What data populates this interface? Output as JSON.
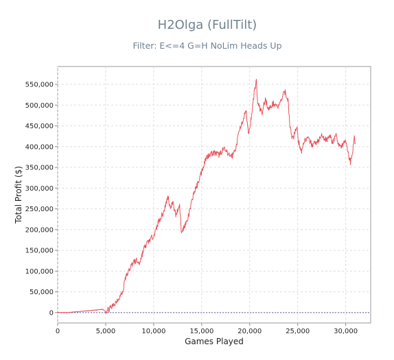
{
  "chart_data": {
    "type": "line",
    "title": "H2Olga (FullTilt)",
    "subtitle": "Filter: E<=4 G=H NoLim Heads Up",
    "xlabel": "Games Played",
    "ylabel": "Total Profit ($)",
    "xlim": [
      0,
      32600
    ],
    "ylim": [
      -25000,
      593000
    ],
    "x_ticks": [
      0,
      5000,
      10000,
      15000,
      20000,
      25000,
      30000
    ],
    "x_tick_labels": [
      "0",
      "5,000",
      "10,000",
      "15,000",
      "20,000",
      "25,000",
      "30,000"
    ],
    "y_ticks": [
      0,
      50000,
      100000,
      150000,
      200000,
      250000,
      300000,
      350000,
      400000,
      450000,
      500000,
      550000
    ],
    "y_tick_labels": [
      "0",
      "50,000",
      "100,000",
      "150,000",
      "200,000",
      "250,000",
      "300,000",
      "350,000",
      "400,000",
      "450,000",
      "500,000",
      "550,000"
    ],
    "grid": true,
    "line_color": "#e8525a",
    "zero_line_color": "#5a5aaa",
    "series": [
      {
        "x": [
          0,
          1000,
          2000,
          3000,
          4000,
          4700,
          5000,
          5600,
          6200,
          6800,
          7000,
          7400,
          7800,
          8200,
          8500,
          9000,
          9400,
          9800,
          10200,
          10500,
          11000,
          11500,
          11700,
          12000,
          12300,
          12700,
          12900,
          13200,
          13500,
          13800,
          14200,
          14500,
          15000,
          15400,
          15800,
          16300,
          16800,
          17300,
          17800,
          18200,
          18600,
          19000,
          19300,
          19600,
          19900,
          20200,
          20500,
          20700,
          20800,
          21000,
          21300,
          21600,
          22000,
          22500,
          23000,
          23500,
          23700,
          24000,
          24200,
          24400,
          24600,
          24900,
          25100,
          25400,
          25700,
          26000,
          26500,
          27000,
          27500,
          28000,
          28300,
          28600,
          29000,
          29300,
          29600,
          30000,
          30300,
          30500,
          30700,
          30900,
          31000
        ],
        "y": [
          0,
          0,
          2000,
          4000,
          6000,
          8000,
          3000,
          12000,
          30000,
          50000,
          80000,
          100000,
          120000,
          125000,
          118000,
          155000,
          170000,
          180000,
          195000,
          220000,
          240000,
          280000,
          255000,
          265000,
          235000,
          260000,
          190000,
          210000,
          220000,
          250000,
          290000,
          305000,
          340000,
          370000,
          382000,
          385000,
          380000,
          395000,
          380000,
          378000,
          400000,
          450000,
          455000,
          490000,
          430000,
          475000,
          535000,
          560000,
          510000,
          495000,
          480000,
          515000,
          490000,
          505000,
          495000,
          525000,
          532000,
          510000,
          450000,
          420000,
          425000,
          450000,
          410000,
          390000,
          415000,
          420000,
          405000,
          410000,
          425000,
          415000,
          430000,
          410000,
          425000,
          405000,
          400000,
          415000,
          380000,
          362000,
          385000,
          420000,
          410000
        ]
      }
    ]
  }
}
